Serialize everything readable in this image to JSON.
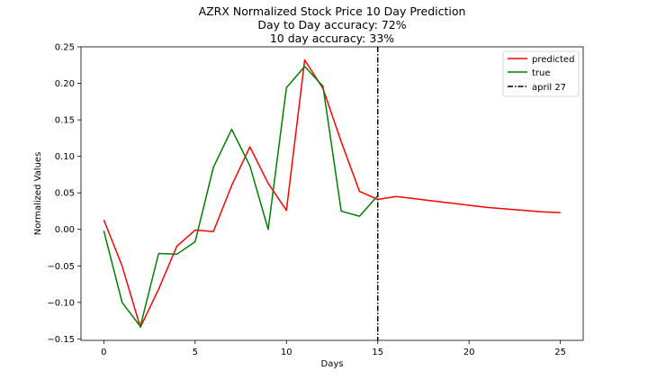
{
  "chart_data": {
    "type": "line",
    "title_lines": [
      "AZRX Normalized Stock Price 10 Day Prediction",
      "Day to Day accuracy: 72%",
      "10 day accuracy: 33%"
    ],
    "xlabel": "Days",
    "ylabel": "Normalized Values",
    "xlim": [
      -1.25,
      26.25
    ],
    "ylim": [
      -0.152,
      0.25
    ],
    "xticks": [
      0,
      5,
      10,
      15,
      20,
      25
    ],
    "xtick_labels": [
      "0",
      "5",
      "10",
      "15",
      "20",
      "25"
    ],
    "yticks": [
      -0.15,
      -0.1,
      -0.05,
      0.0,
      0.05,
      0.1,
      0.15,
      0.2,
      0.25
    ],
    "ytick_labels": [
      "−0.15",
      "−0.10",
      "−0.05",
      "0.00",
      "0.05",
      "0.10",
      "0.15",
      "0.20",
      "0.25"
    ],
    "grid": false,
    "legend_position": "top-right",
    "series": [
      {
        "name": "predicted",
        "color": "#ff0000",
        "x": [
          0,
          1,
          2,
          3,
          4,
          5,
          6,
          7,
          8,
          9,
          10,
          11,
          12,
          13,
          14,
          15,
          16,
          17,
          18,
          19,
          20,
          21,
          22,
          23,
          24,
          25
        ],
        "y": [
          0.013,
          -0.05,
          -0.134,
          -0.082,
          -0.023,
          -0.001,
          -0.003,
          0.06,
          0.113,
          0.063,
          0.026,
          0.232,
          0.193,
          0.12,
          0.052,
          0.041,
          0.045,
          0.042,
          0.039,
          0.036,
          0.033,
          0.03,
          0.028,
          0.026,
          0.024,
          0.023
        ]
      },
      {
        "name": "true",
        "color": "#008000",
        "x": [
          0,
          1,
          2,
          3,
          4,
          5,
          6,
          7,
          8,
          9,
          10,
          11,
          12,
          13,
          14,
          15
        ],
        "y": [
          -0.002,
          -0.1,
          -0.133,
          -0.033,
          -0.034,
          -0.017,
          0.085,
          0.137,
          0.087,
          0.0,
          0.194,
          0.223,
          0.196,
          0.025,
          0.018,
          0.046
        ]
      }
    ],
    "vline": {
      "x": 15,
      "name": "april 27",
      "color": "#000000",
      "style": "dashdot"
    }
  }
}
